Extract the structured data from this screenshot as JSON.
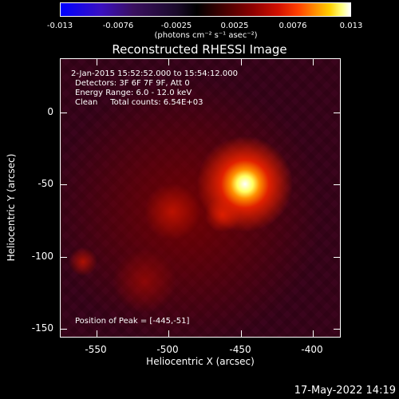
{
  "colorbar": {
    "ticks": [
      "-0.013",
      "-0.0076",
      "-0.0025",
      "0.0025",
      "0.0076",
      "0.013"
    ],
    "units": "(photons cm⁻² s⁻¹ asec⁻²)"
  },
  "title": "Reconstructed RHESSI Image",
  "info": {
    "line1": "2-Jan-2015 15:52:52.000 to 15:54:12.000",
    "line2": "Detectors: 3F 6F 7F 9F, Att 0",
    "line3": "Energy Range: 6.0 - 12.0 keV",
    "line4": "Clean     Total counts: 6.54E+03",
    "peak": "Position of Peak = [-445,-51]"
  },
  "axes": {
    "xlabel": "Heliocentric X (arcsec)",
    "ylabel": "Heliocentric Y (arcsec)",
    "xticks": [
      "-550",
      "-500",
      "-450",
      "-400"
    ],
    "yticks": [
      "0",
      "-50",
      "-100",
      "-150"
    ]
  },
  "timestamp": "17-May-2022 14:19"
}
